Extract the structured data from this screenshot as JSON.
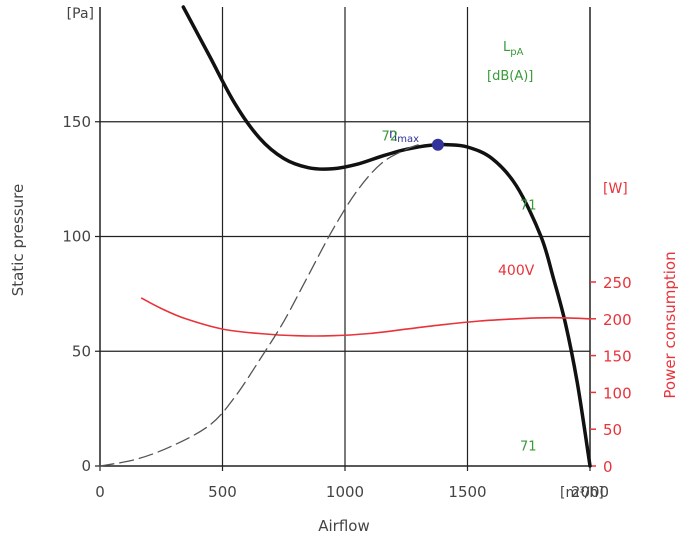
{
  "chart_data": {
    "type": "line",
    "xlabel": "Airflow",
    "x_unit": "[m³/h]",
    "ylabel": "Static pressure",
    "y_unit": "[Pa]",
    "y2label": "Power consumption",
    "y2_unit": "[W]",
    "xlim": [
      0,
      2000
    ],
    "ylim": [
      0,
      200
    ],
    "y2lim": [
      0,
      250
    ],
    "x_ticks": [
      "0",
      "500",
      "1000",
      "1500",
      "2000"
    ],
    "y_ticks": [
      "0",
      "50",
      "100",
      "150"
    ],
    "y2_ticks": [
      "0",
      "50",
      "100",
      "150",
      "200",
      "250"
    ],
    "grid": true,
    "lpa_label": {
      "main": "L",
      "sub": "pA",
      "unit": "[dB(A)]"
    },
    "eta_label": {
      "main": "η",
      "sub": "max"
    },
    "sound_labels": [
      {
        "text": "72",
        "x": 1190,
        "y": 144
      },
      {
        "text": "71",
        "x": 1860,
        "y": 114
      },
      {
        "text": "71",
        "x": 2120,
        "y": 9
      }
    ],
    "series": [
      {
        "name": "pressure",
        "axis": "left",
        "color": "#111111",
        "style": "solid",
        "points": [
          [
            340,
            200
          ],
          [
            450,
            178
          ],
          [
            550,
            158
          ],
          [
            650,
            143
          ],
          [
            750,
            134
          ],
          [
            850,
            130
          ],
          [
            950,
            129.5
          ],
          [
            1050,
            131.5
          ],
          [
            1150,
            135
          ],
          [
            1250,
            138
          ],
          [
            1350,
            139.8
          ],
          [
            1420,
            140
          ],
          [
            1500,
            139
          ],
          [
            1600,
            134
          ],
          [
            1700,
            122
          ],
          [
            1800,
            100
          ],
          [
            1850,
            82
          ],
          [
            1900,
            62
          ],
          [
            1950,
            35
          ],
          [
            2000,
            0
          ]
        ]
      },
      {
        "name": "400V",
        "axis": "right",
        "color": "#e8333a",
        "style": "solid",
        "points": [
          [
            170,
            228
          ],
          [
            250,
            214
          ],
          [
            350,
            200
          ],
          [
            500,
            186
          ],
          [
            650,
            180
          ],
          [
            800,
            177
          ],
          [
            950,
            177
          ],
          [
            1100,
            180
          ],
          [
            1250,
            186
          ],
          [
            1400,
            192
          ],
          [
            1550,
            197
          ],
          [
            1700,
            200
          ],
          [
            1850,
            201.5
          ],
          [
            2000,
            200
          ]
        ]
      },
      {
        "name": "efficiency",
        "axis": "left",
        "color": "#555555",
        "style": "dashed",
        "points": [
          [
            0,
            0
          ],
          [
            150,
            3
          ],
          [
            300,
            9
          ],
          [
            450,
            18
          ],
          [
            550,
            30
          ],
          [
            650,
            46
          ],
          [
            750,
            63
          ],
          [
            850,
            83
          ],
          [
            950,
            103
          ],
          [
            1050,
            120
          ],
          [
            1150,
            132
          ],
          [
            1250,
            138
          ],
          [
            1300,
            140
          ]
        ]
      }
    ],
    "marker": {
      "x": 1420,
      "y": 140,
      "color": "#333399",
      "label": "ηmax"
    }
  }
}
